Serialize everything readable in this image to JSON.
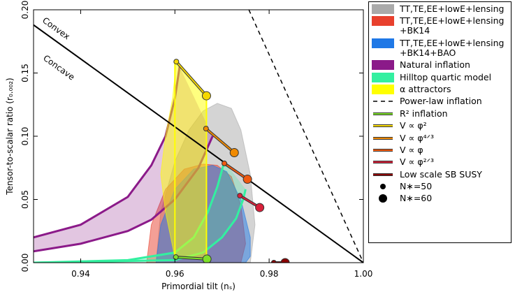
{
  "chart_data": {
    "type": "ns-r",
    "xlabel": "Primordial tilt (nₛ)",
    "ylabel": "Tensor-to-scalar ratio (r₀.₀₀₂)",
    "xlim": [
      0.93,
      1.0
    ],
    "ylim": [
      0,
      0.2
    ],
    "xticks": [
      0.94,
      0.96,
      0.98,
      {
        "value": 1,
        "label": "1.00"
      }
    ],
    "yticks": [
      {
        "value": 0,
        "label": "0.00"
      },
      0.05,
      {
        "value": 0.1,
        "label": "0.10"
      },
      0.15,
      {
        "value": 0.2,
        "label": "0.20"
      }
    ],
    "annotations": [
      "Convex",
      "Concave"
    ],
    "areas": [
      {
        "name": "TT,TE,EE+lowE+lensing",
        "kind": "polygon",
        "color": "#aaaaaa",
        "x": [
          0.956,
          0.957,
          0.96,
          0.963,
          0.966,
          0.969,
          0.972,
          0.974,
          0.976,
          0.977,
          0.976
        ],
        "y": [
          0,
          0.04,
          0.08,
          0.105,
          0.12,
          0.126,
          0.122,
          0.105,
          0.07,
          0.03,
          0
        ]
      },
      {
        "name": "TT,TE,EE+lowE+lensing +BK14",
        "kind": "polygon",
        "color": "#e8402d",
        "x": [
          0.954,
          0.955,
          0.958,
          0.962,
          0.966,
          0.969,
          0.972,
          0.974,
          0.975,
          0.974
        ],
        "y": [
          0,
          0.03,
          0.058,
          0.074,
          0.078,
          0.077,
          0.068,
          0.045,
          0.015,
          0
        ]
      },
      {
        "name": "TT,TE,EE+lowE+lensing +BK14+BAO",
        "kind": "polygon",
        "color": "#1f78e6",
        "x": [
          0.956,
          0.957,
          0.96,
          0.964,
          0.968,
          0.971,
          0.974,
          0.976,
          0.976,
          0.975
        ],
        "y": [
          0,
          0.03,
          0.058,
          0.074,
          0.077,
          0.072,
          0.05,
          0.02,
          0.005,
          0
        ]
      },
      {
        "name": "Natural inflation",
        "kind": "band",
        "color": "#8b1a89",
        "upper": {
          "x": [
            0.93,
            0.94,
            0.95,
            0.955,
            0.958,
            0.96,
            0.961
          ],
          "y": [
            0.02,
            0.03,
            0.052,
            0.077,
            0.1,
            0.13,
            0.155
          ]
        },
        "lower": {
          "x": [
            0.93,
            0.94,
            0.95,
            0.955,
            0.96,
            0.965,
            0.968
          ],
          "y": [
            0.009,
            0.015,
            0.025,
            0.034,
            0.05,
            0.075,
            0.1
          ]
        }
      },
      {
        "name": "Hilltop quartic model",
        "kind": "band",
        "color": "#33f0a0",
        "upper": {
          "x": [
            0.93,
            0.95,
            0.96,
            0.964,
            0.967,
            0.969,
            0.9705
          ],
          "y": [
            0,
            0.002,
            0.008,
            0.02,
            0.04,
            0.06,
            0.08
          ]
        },
        "lower": {
          "x": [
            0.93,
            0.96,
            0.966,
            0.97,
            0.973,
            0.9745,
            0.975
          ],
          "y": [
            0,
            0.002,
            0.008,
            0.02,
            0.035,
            0.05,
            0.058
          ]
        }
      },
      {
        "name": "α attractors",
        "kind": "polygon",
        "color": "#ffff00",
        "x": [
          0.9603,
          0.9595,
          0.958,
          0.957,
          0.958,
          0.96,
          0.9667,
          0.9667
        ],
        "y": [
          0.159,
          0.13,
          0.1,
          0.07,
          0.04,
          0.004,
          0.003,
          0.132
        ]
      }
    ],
    "lines": [
      {
        "x": [
          0.93,
          1.0
        ],
        "y": [
          0.188,
          0
        ],
        "color": "#000000"
      },
      {
        "name": "Power-law inflation",
        "x": [
          0.9757,
          1.0
        ],
        "y": [
          0.2,
          0
        ],
        "color": "#000000",
        "dashed": true
      },
      {
        "x": [
          0.96,
          0.96
        ],
        "y": [
          0.004,
          0.159
        ],
        "color": "#ffff00"
      },
      {
        "x": [
          0.9667,
          0.9667
        ],
        "y": [
          0.003,
          0.132
        ],
        "color": "#ffff00"
      }
    ],
    "models": [
      {
        "name": "R² inflation",
        "color": "#7ee02a",
        "x": [
          0.9602,
          0.9668
        ],
        "y": [
          0.0044,
          0.0028
        ]
      },
      {
        "name": "V ∝ φ²",
        "color": "#f5d800",
        "x": [
          0.9603,
          0.9667
        ],
        "y": [
          0.159,
          0.132
        ]
      },
      {
        "name": "V ∝ φ⁴ᐟ³",
        "color": "#f08a00",
        "x": [
          0.9666,
          0.9726
        ],
        "y": [
          0.106,
          0.087
        ]
      },
      {
        "name": "V ∝ φ",
        "color": "#f05a10",
        "x": [
          0.9705,
          0.9754
        ],
        "y": [
          0.0785,
          0.066
        ]
      },
      {
        "name": "V ∝ φ²ᐟ³",
        "color": "#d8203a",
        "x": [
          0.9738,
          0.978
        ],
        "y": [
          0.053,
          0.0436
        ]
      },
      {
        "name": "Low scale SB SUSY",
        "color": "#8b0000",
        "x": [
          0.981,
          0.9834
        ],
        "y": [
          0,
          0
        ]
      }
    ],
    "sizes": [
      "N∗=50",
      "N∗=60"
    ]
  }
}
